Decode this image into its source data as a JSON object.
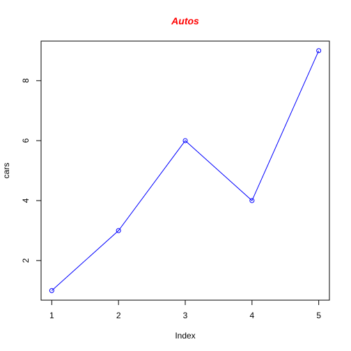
{
  "chart_data": {
    "type": "line",
    "title": "Autos",
    "xlabel": "Index",
    "ylabel": "cars",
    "x": [
      1,
      2,
      3,
      4,
      5
    ],
    "series": [
      {
        "values": [
          1,
          3,
          6,
          4,
          9
        ],
        "color": "#0000ff",
        "marker": "open-circle"
      }
    ],
    "xlim": [
      0.84,
      5.16
    ],
    "ylim": [
      0.68,
      9.32
    ],
    "x_ticks": [
      "1",
      "2",
      "3",
      "4",
      "5"
    ],
    "y_ticks": [
      "2",
      "4",
      "6",
      "8"
    ],
    "grid": false,
    "legend": "none",
    "colors": {
      "title": "#ff0000",
      "line": "#0000ff",
      "axes": "#000000"
    }
  }
}
